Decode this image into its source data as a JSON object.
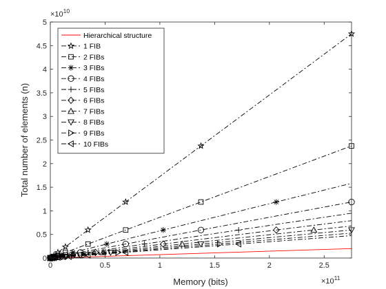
{
  "chart_data": {
    "type": "line",
    "xlabel": "Memory (bits)",
    "ylabel": "Total number of elements (n)",
    "x_exponent": {
      "base": "×10",
      "power": "11"
    },
    "y_exponent": {
      "base": "×10",
      "power": "10"
    },
    "xlim": [
      0,
      2.75
    ],
    "ylim": [
      0,
      5
    ],
    "xticks": [
      0,
      0.5,
      1,
      1.5,
      2,
      2.5
    ],
    "xtick_labels": [
      "0",
      "0.5",
      "1",
      "1.5",
      "2",
      "2.5"
    ],
    "yticks": [
      0,
      0.5,
      1,
      1.5,
      2,
      2.5,
      3,
      3.5,
      4,
      4.5,
      5
    ],
    "ytick_labels": [
      "0",
      "0.5",
      "1",
      "1.5",
      "2",
      "2.5",
      "3",
      "3.5",
      "4",
      "4.5",
      "5"
    ],
    "grid": false,
    "legend_position": "top-left",
    "series": [
      {
        "name": "Hierarchical structure",
        "marker": "none",
        "line": "solid",
        "color": "#ff0000",
        "x": [
          0,
          2.75
        ],
        "y": [
          0,
          0.2
        ]
      },
      {
        "name": "1 FIB",
        "marker": "star",
        "line": "dashdot",
        "color": "#000000",
        "x": [
          0,
          2.75
        ],
        "y": [
          0,
          4.75
        ],
        "marker_x": [
          0,
          0.0017,
          0.0034,
          0.0069,
          0.0138,
          0.0344,
          0.0688,
          0.1375,
          0.344,
          0.688,
          1.375,
          2.75
        ]
      },
      {
        "name": "2 FIBs",
        "marker": "square",
        "line": "dashdot",
        "color": "#000000",
        "x": [
          0,
          2.75
        ],
        "y": [
          0,
          2.375
        ],
        "marker_x": [
          0,
          0.0017,
          0.0034,
          0.0069,
          0.0138,
          0.0344,
          0.0688,
          0.1375,
          0.344,
          0.688,
          1.375,
          2.75
        ]
      },
      {
        "name": "3 FIBs",
        "marker": "asterisk",
        "line": "dashdot",
        "color": "#000000",
        "x": [
          0,
          2.75
        ],
        "y": [
          0,
          1.583
        ],
        "marker_x": [
          0,
          0.0052,
          0.0103,
          0.0206,
          0.0516,
          0.1031,
          0.2063,
          0.5156,
          1.031,
          2.063
        ]
      },
      {
        "name": "4 FIBs",
        "marker": "circle",
        "line": "dashdot",
        "color": "#000000",
        "x": [
          0,
          2.75
        ],
        "y": [
          0,
          1.1875
        ],
        "marker_x": [
          0,
          0.0069,
          0.0138,
          0.0275,
          0.0688,
          0.1375,
          0.275,
          0.688,
          1.375,
          2.75
        ]
      },
      {
        "name": "5 FIBs",
        "marker": "plus",
        "line": "dashdot",
        "color": "#000000",
        "x": [
          0,
          2.75
        ],
        "y": [
          0,
          0.95
        ],
        "marker_x": [
          0,
          0.0086,
          0.0172,
          0.0344,
          0.086,
          0.172,
          0.344,
          0.86,
          1.719
        ]
      },
      {
        "name": "6 FIBs",
        "marker": "diamond",
        "line": "dashdot",
        "color": "#000000",
        "x": [
          0,
          2.75
        ],
        "y": [
          0,
          0.792
        ],
        "marker_x": [
          0,
          0.0103,
          0.0206,
          0.0413,
          0.1031,
          0.2063,
          0.4125,
          1.031,
          2.063
        ]
      },
      {
        "name": "7 FIBs",
        "marker": "triangle-up",
        "line": "dashdot",
        "color": "#000000",
        "x": [
          0,
          2.75
        ],
        "y": [
          0,
          0.679
        ],
        "marker_x": [
          0,
          0.012,
          0.024,
          0.0481,
          0.1203,
          0.2406,
          0.4813,
          1.203,
          2.406
        ]
      },
      {
        "name": "8 FIBs",
        "marker": "triangle-down",
        "line": "dashdot",
        "color": "#000000",
        "x": [
          0,
          2.75
        ],
        "y": [
          0,
          0.594
        ],
        "marker_x": [
          0,
          0.0138,
          0.0275,
          0.055,
          0.1375,
          0.275,
          0.55,
          1.375,
          2.75
        ]
      },
      {
        "name": "9 FIBs",
        "marker": "triangle-right",
        "line": "dashdot",
        "color": "#000000",
        "x": [
          0,
          2.75
        ],
        "y": [
          0,
          0.528
        ],
        "marker_x": [
          0,
          0.0155,
          0.0309,
          0.0619,
          0.1547,
          0.3094,
          0.6188,
          1.547
        ]
      },
      {
        "name": "10 FIBs",
        "marker": "triangle-left",
        "line": "dashdot",
        "color": "#000000",
        "x": [
          0,
          2.75
        ],
        "y": [
          0,
          0.475
        ],
        "marker_x": [
          0,
          0.0172,
          0.0344,
          0.0688,
          0.1719,
          0.3438,
          0.6875,
          1.719
        ]
      }
    ]
  }
}
